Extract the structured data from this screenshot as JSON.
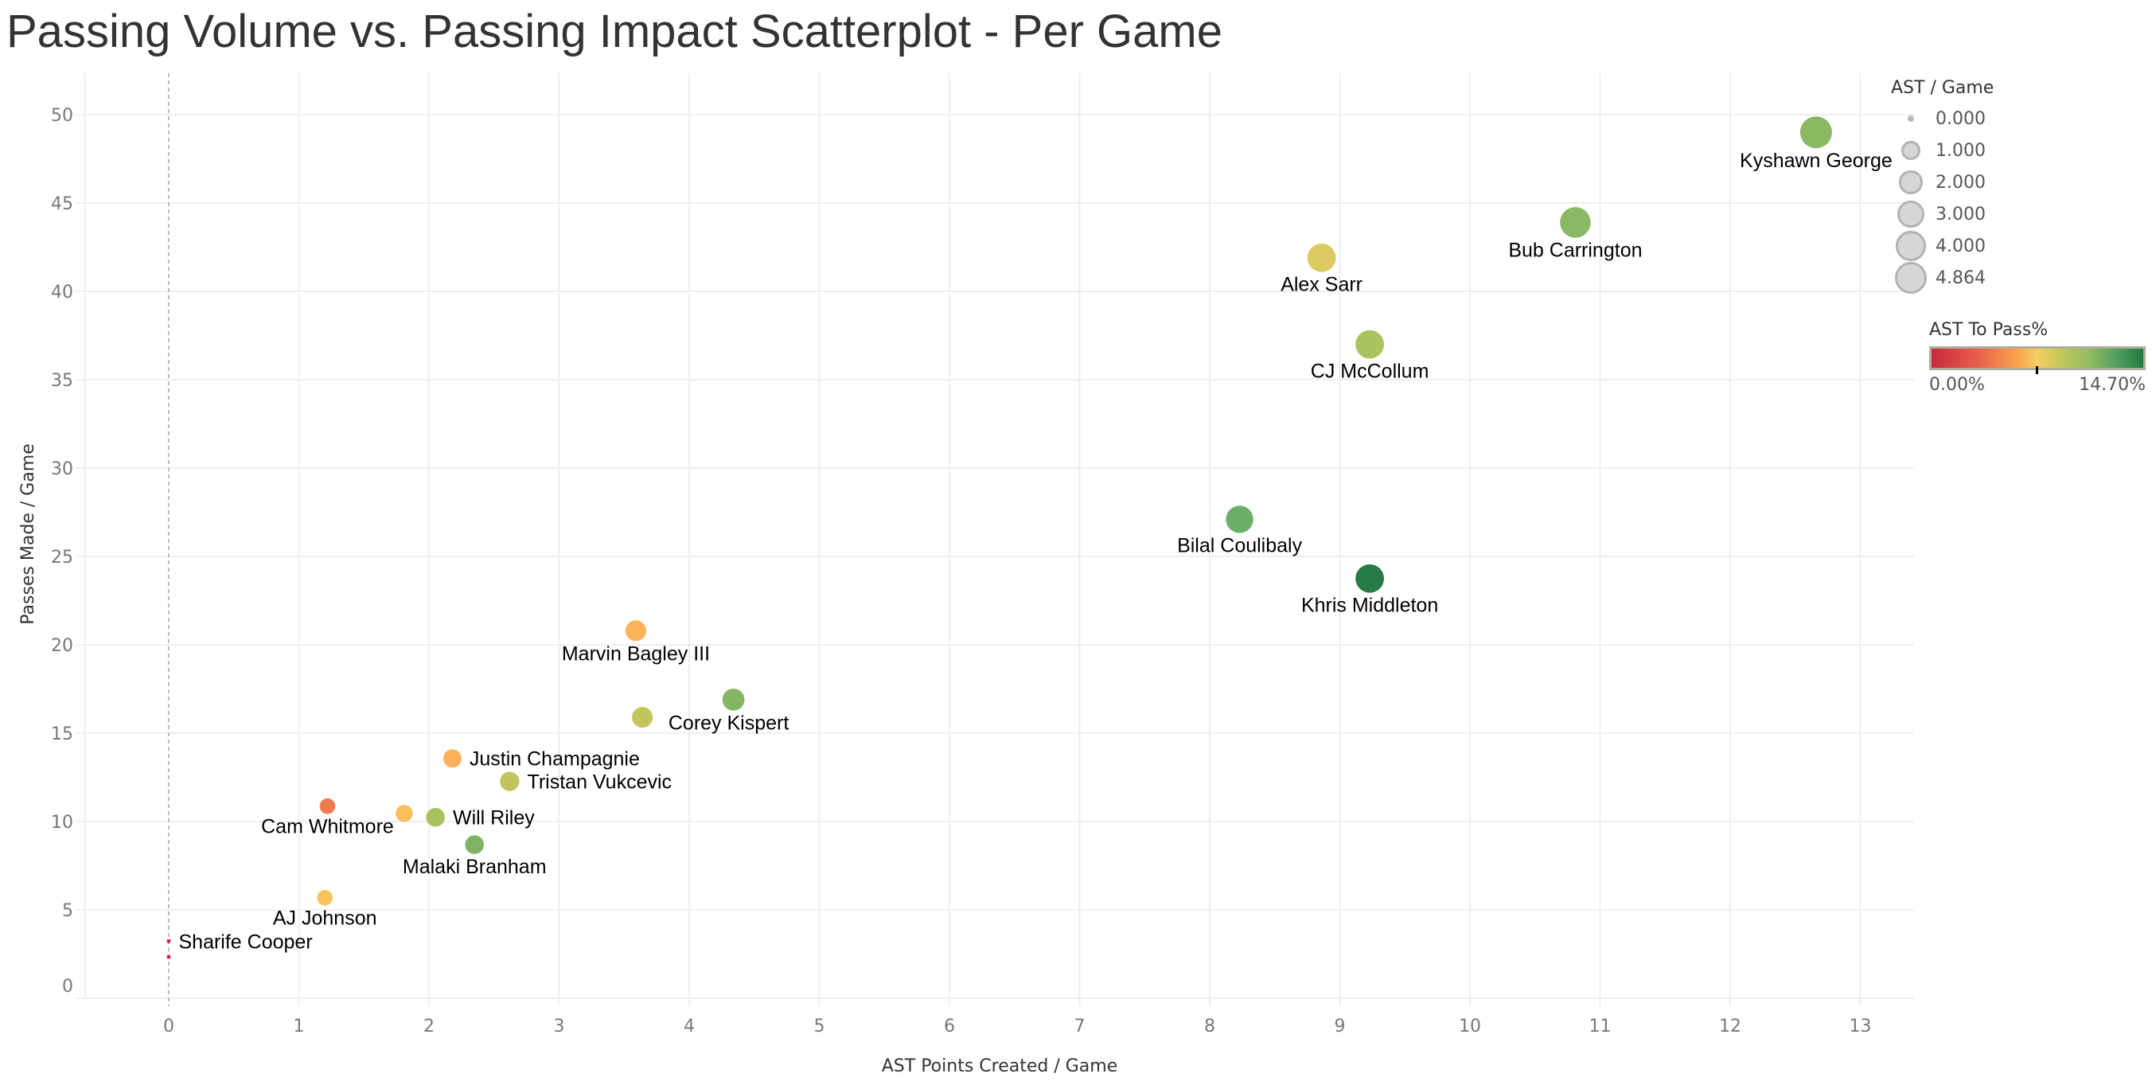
{
  "title": "Passing Volume vs. Passing Impact Scatterplot - Per Game",
  "chart_data": {
    "type": "scatter",
    "title": "Passing Volume vs. Passing Impact Scatterplot - Per Game",
    "xlabel": "AST Points Created / Game",
    "ylabel": "Passes Made / Game",
    "xlim": [
      -0.65,
      13.45
    ],
    "ylim": [
      -0.6,
      52.3
    ],
    "xticks": [
      0,
      1,
      2,
      3,
      4,
      5,
      6,
      7,
      8,
      9,
      10,
      11,
      12,
      13
    ],
    "yticks": [
      0,
      5,
      10,
      15,
      20,
      25,
      30,
      35,
      40,
      45,
      50
    ],
    "grid": true,
    "reference_line_x": 0,
    "size_field": "AST / Game",
    "color_field": "AST To Pass%",
    "points": [
      {
        "label": "Kyshawn George",
        "x": 12.66,
        "y": 49.0,
        "ast_per_game": 4.86,
        "ast_to_pass_pct": 9.9,
        "color": "#8bb862",
        "label_pos": "below"
      },
      {
        "label": "Bub Carrington",
        "x": 10.81,
        "y": 43.9,
        "ast_per_game": 4.4,
        "ast_to_pass_pct": 10.0,
        "color": "#8ab864",
        "label_pos": "below"
      },
      {
        "label": "Alex Sarr",
        "x": 8.86,
        "y": 41.9,
        "ast_per_game": 3.6,
        "ast_to_pass_pct": 7.6,
        "color": "#dccb62",
        "label_pos": "below"
      },
      {
        "label": "CJ McCollum",
        "x": 9.23,
        "y": 37.0,
        "ast_per_game": 3.6,
        "ast_to_pass_pct": 9.2,
        "color": "#a9c35f",
        "label_pos": "below"
      },
      {
        "label": "Bilal Coulibaly",
        "x": 8.23,
        "y": 27.1,
        "ast_per_game": 3.2,
        "ast_to_pass_pct": 11.5,
        "color": "#6aaf68",
        "label_pos": "below"
      },
      {
        "label": "Khris Middleton",
        "x": 9.23,
        "y": 23.75,
        "ast_per_game": 3.6,
        "ast_to_pass_pct": 14.7,
        "color": "#257a45",
        "label_pos": "below"
      },
      {
        "label": "Marvin Bagley III",
        "x": 3.59,
        "y": 20.8,
        "ast_per_game": 1.4,
        "ast_to_pass_pct": 6.3,
        "color": "#fbb45a",
        "label_pos": "below"
      },
      {
        "label": "",
        "x": 3.64,
        "y": 15.9,
        "ast_per_game": 1.4,
        "ast_to_pass_pct": 8.4,
        "color": "#c3c65e",
        "label_pos": "none"
      },
      {
        "label": "Corey Kispert",
        "x": 4.34,
        "y": 16.9,
        "ast_per_game": 1.7,
        "ast_to_pass_pct": 10.7,
        "color": "#86b664",
        "label_pos": "below-right"
      },
      {
        "label": "Justin Champagnie",
        "x": 2.18,
        "y": 13.57,
        "ast_per_game": 0.9,
        "ast_to_pass_pct": 6.3,
        "color": "#fbb15a",
        "label_pos": "right"
      },
      {
        "label": "Tristan Vukcevic",
        "x": 2.62,
        "y": 12.27,
        "ast_per_game": 1.1,
        "ast_to_pass_pct": 8.6,
        "color": "#c0c55f",
        "label_pos": "right"
      },
      {
        "label": "Cam Whitmore",
        "x": 1.22,
        "y": 10.87,
        "ast_per_game": 0.5,
        "ast_to_pass_pct": 3.6,
        "color": "#ee7b4e",
        "label_pos": "below"
      },
      {
        "label": "",
        "x": 1.81,
        "y": 10.46,
        "ast_per_game": 0.7,
        "ast_to_pass_pct": 6.6,
        "color": "#fcbd5b",
        "label_pos": "none"
      },
      {
        "label": "Will Riley",
        "x": 2.05,
        "y": 10.24,
        "ast_per_game": 1.0,
        "ast_to_pass_pct": 9.2,
        "color": "#a8c25f",
        "label_pos": "right"
      },
      {
        "label": "Malaki Branham",
        "x": 2.35,
        "y": 8.69,
        "ast_per_game": 1.0,
        "ast_to_pass_pct": 10.9,
        "color": "#7db363",
        "label_pos": "below"
      },
      {
        "label": "AJ Johnson",
        "x": 1.2,
        "y": 5.69,
        "ast_per_game": 0.5,
        "ast_to_pass_pct": 6.9,
        "color": "#f9c35c",
        "label_pos": "below"
      },
      {
        "label": "Sharife Cooper",
        "x": 0.0,
        "y": 3.23,
        "ast_per_game": 0.0,
        "ast_to_pass_pct": 0.0,
        "color": "#c8283c",
        "label_pos": "right"
      },
      {
        "label": "",
        "x": 0.0,
        "y": 2.34,
        "ast_per_game": 0.0,
        "ast_to_pass_pct": 0.0,
        "color": "#c8283c",
        "label_pos": "none"
      }
    ],
    "legends": {
      "size": {
        "title": "AST / Game",
        "values": [
          "0.000",
          "1.000",
          "2.000",
          "3.000",
          "4.000",
          "4.864"
        ]
      },
      "color": {
        "title": "AST To Pass%",
        "min_label": "0.00%",
        "max_label": "14.70%",
        "min": 0.0,
        "max": 14.7,
        "marker": 7.35
      }
    }
  }
}
